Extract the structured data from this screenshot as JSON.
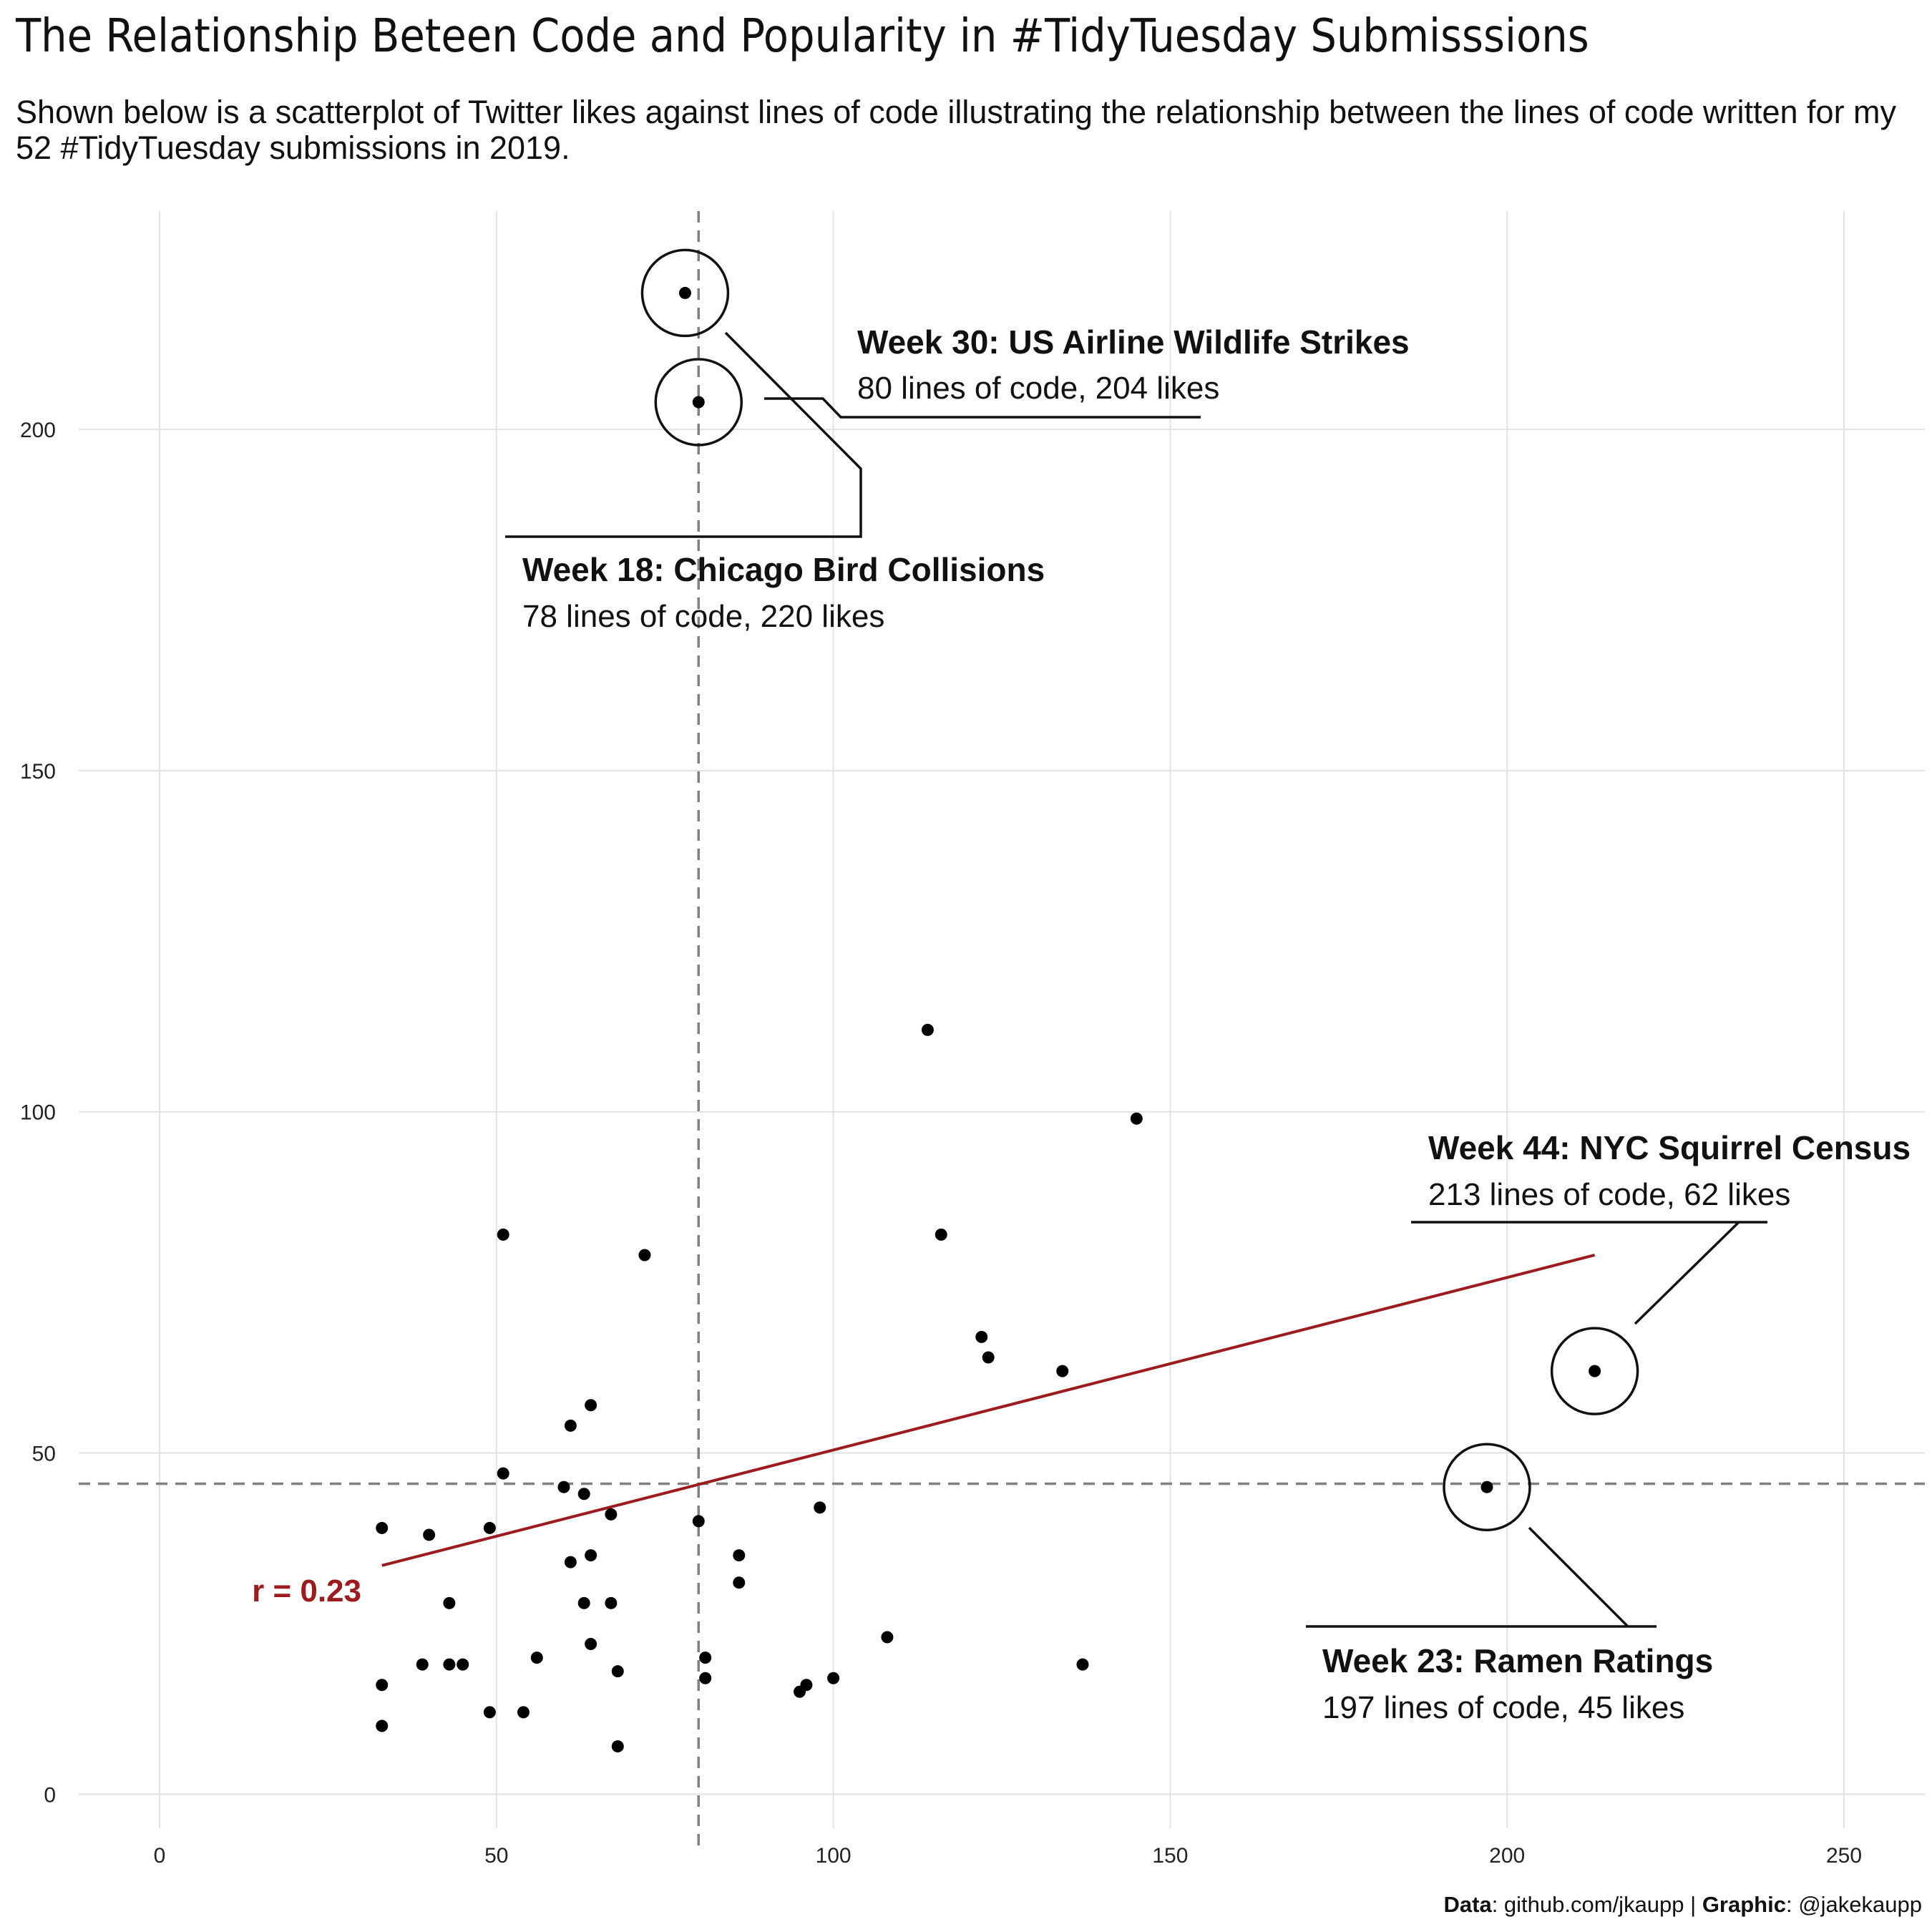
{
  "title": "The Relationship Beteen Code and Popularity in #TidyTuesday Submisssions",
  "subtitle": "Shown below is a scatterplot of Twitter likes against lines of code illustrating the relationship between the lines of code written for my 52 #TidyTuesday submissions in 2019.",
  "caption": {
    "data_label": "Data",
    "data_value": ": github.com/jkaupp | ",
    "graphic_label": "Graphic",
    "graphic_value": ": @jakekaupp"
  },
  "colors": {
    "points": "#000000",
    "fit_line": "#9b1b1f",
    "reference_lines": "#808080",
    "grid": "#e2e2e2"
  },
  "chart_data": {
    "type": "scatter",
    "xlabel": "",
    "ylabel": "",
    "xlim": [
      -12,
      262
    ],
    "ylim": [
      -5,
      232
    ],
    "x_ticks": [
      0,
      50,
      100,
      150,
      200,
      250
    ],
    "y_ticks": [
      0,
      50,
      100,
      150,
      200
    ],
    "grid": true,
    "points": [
      {
        "x": 78,
        "y": 220
      },
      {
        "x": 80,
        "y": 204
      },
      {
        "x": 114,
        "y": 112
      },
      {
        "x": 145,
        "y": 99
      },
      {
        "x": 51,
        "y": 82
      },
      {
        "x": 116,
        "y": 82
      },
      {
        "x": 72,
        "y": 79
      },
      {
        "x": 122,
        "y": 67
      },
      {
        "x": 123,
        "y": 64
      },
      {
        "x": 134,
        "y": 62
      },
      {
        "x": 213,
        "y": 62
      },
      {
        "x": 64,
        "y": 57
      },
      {
        "x": 61,
        "y": 54
      },
      {
        "x": 51,
        "y": 47
      },
      {
        "x": 60,
        "y": 45
      },
      {
        "x": 197,
        "y": 45
      },
      {
        "x": 63,
        "y": 44
      },
      {
        "x": 98,
        "y": 42
      },
      {
        "x": 67,
        "y": 41
      },
      {
        "x": 80,
        "y": 40
      },
      {
        "x": 33,
        "y": 39
      },
      {
        "x": 49,
        "y": 39
      },
      {
        "x": 40,
        "y": 38
      },
      {
        "x": 64,
        "y": 35
      },
      {
        "x": 86,
        "y": 35
      },
      {
        "x": 61,
        "y": 34
      },
      {
        "x": 86,
        "y": 31
      },
      {
        "x": 43,
        "y": 28
      },
      {
        "x": 63,
        "y": 28
      },
      {
        "x": 67,
        "y": 28
      },
      {
        "x": 108,
        "y": 23
      },
      {
        "x": 64,
        "y": 22
      },
      {
        "x": 56,
        "y": 20
      },
      {
        "x": 81,
        "y": 20
      },
      {
        "x": 39,
        "y": 19
      },
      {
        "x": 43,
        "y": 19
      },
      {
        "x": 45,
        "y": 19
      },
      {
        "x": 137,
        "y": 19
      },
      {
        "x": 68,
        "y": 18
      },
      {
        "x": 81,
        "y": 17
      },
      {
        "x": 100,
        "y": 17
      },
      {
        "x": 33,
        "y": 16
      },
      {
        "x": 96,
        "y": 16
      },
      {
        "x": 95,
        "y": 15
      },
      {
        "x": 49,
        "y": 12
      },
      {
        "x": 54,
        "y": 12
      },
      {
        "x": 33,
        "y": 10
      },
      {
        "x": 68,
        "y": 7
      }
    ],
    "reference_lines": {
      "x_median": 80,
      "y_median": 45.5
    },
    "fit_line": {
      "x1": 33,
      "y1": 33.5,
      "x2": 213,
      "y2": 79
    },
    "correlation_label": "r = 0.23",
    "annotations": [
      {
        "title": "Week 30: US Airline Wildlife Strikes",
        "detail": "80 lines of code, 204 likes",
        "x": 80,
        "y": 204
      },
      {
        "title": "Week 18: Chicago Bird Collisions",
        "detail": "78 lines of code, 220 likes",
        "x": 78,
        "y": 220
      },
      {
        "title": "Week 44: NYC Squirrel Census",
        "detail": "213 lines of code, 62 likes",
        "x": 213,
        "y": 62
      },
      {
        "title": "Week 23: Ramen Ratings",
        "detail": "197 lines of code, 45 likes",
        "x": 197,
        "y": 45
      }
    ]
  }
}
